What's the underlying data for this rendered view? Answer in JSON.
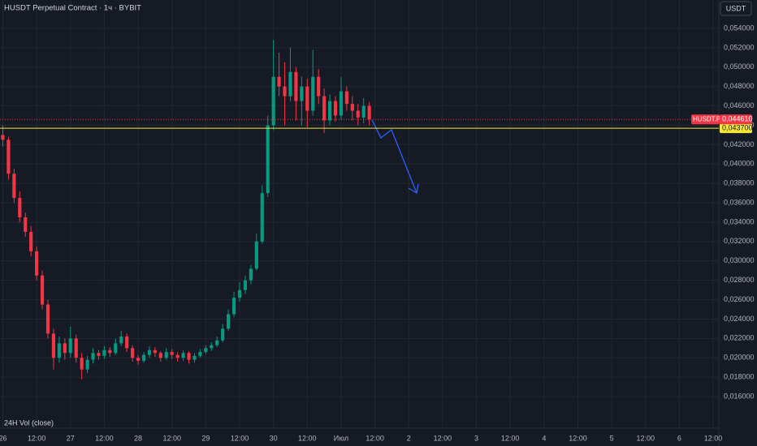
{
  "chart_data": {
    "type": "candlestick",
    "title": "HUSDT Perpetual Contract · 1ч · BYBIT",
    "currency": "USDT",
    "indicator": "24H Vol (close)",
    "up_color": "#089981",
    "down_color": "#f23645",
    "grid": true,
    "xlim": [
      -1,
      254
    ],
    "xticks": [
      {
        "value": 0,
        "label": "26"
      },
      {
        "value": 12,
        "label": "12:00"
      },
      {
        "value": 24,
        "label": "27"
      },
      {
        "value": 36,
        "label": "12:00"
      },
      {
        "value": 48,
        "label": "28"
      },
      {
        "value": 60,
        "label": "12:00"
      },
      {
        "value": 72,
        "label": "29"
      },
      {
        "value": 84,
        "label": "12:00"
      },
      {
        "value": 96,
        "label": "30"
      },
      {
        "value": 108,
        "label": "12:00"
      },
      {
        "value": 120,
        "label": "Июл"
      },
      {
        "value": 132,
        "label": "12:00"
      },
      {
        "value": 144,
        "label": "2"
      },
      {
        "value": 156,
        "label": "12:00"
      },
      {
        "value": 168,
        "label": "3"
      },
      {
        "value": 180,
        "label": "12:00"
      },
      {
        "value": 192,
        "label": "4"
      },
      {
        "value": 204,
        "label": "12:00"
      },
      {
        "value": 216,
        "label": "5"
      },
      {
        "value": 228,
        "label": "12:00"
      },
      {
        "value": 240,
        "label": "6"
      },
      {
        "value": 252,
        "label": "12:00"
      }
    ],
    "ylim": [
      0.01274,
      0.05693
    ],
    "yticks": [
      {
        "value": 0.016,
        "label": "0,016000"
      },
      {
        "value": 0.018,
        "label": "0,018000"
      },
      {
        "value": 0.02,
        "label": "0,020000"
      },
      {
        "value": 0.022,
        "label": "0,022000"
      },
      {
        "value": 0.024,
        "label": "0,024000"
      },
      {
        "value": 0.026,
        "label": "0,026000"
      },
      {
        "value": 0.028,
        "label": "0,028000"
      },
      {
        "value": 0.03,
        "label": "0,030000"
      },
      {
        "value": 0.032,
        "label": "0,032000"
      },
      {
        "value": 0.034,
        "label": "0,034000"
      },
      {
        "value": 0.036,
        "label": "0,036000"
      },
      {
        "value": 0.038,
        "label": "0,038000"
      },
      {
        "value": 0.04,
        "label": "0,040000"
      },
      {
        "value": 0.042,
        "label": "0,042000"
      },
      {
        "value": 0.044,
        "label": "0,044000"
      },
      {
        "value": 0.046,
        "label": "0,046000"
      },
      {
        "value": 0.048,
        "label": "0,048000"
      },
      {
        "value": 0.05,
        "label": "0,050000"
      },
      {
        "value": 0.052,
        "label": "0,052000"
      },
      {
        "value": 0.054,
        "label": "0,054000"
      }
    ],
    "last_price": {
      "name": "HUSDT.P",
      "value": 0.04461,
      "label": "0,044610",
      "color": "#f23645"
    },
    "level": {
      "value": 0.0437,
      "label": "0,043700",
      "color": "#f5e63b"
    },
    "x": [
      0,
      2,
      4,
      6,
      8,
      10,
      12,
      14,
      16,
      18,
      20,
      22,
      24,
      26,
      28,
      30,
      32,
      34,
      36,
      38,
      40,
      42,
      44,
      46,
      48,
      50,
      52,
      54,
      56,
      58,
      60,
      62,
      64,
      66,
      68,
      70,
      72,
      74,
      76,
      78,
      80,
      82,
      84,
      86,
      88,
      90,
      92,
      94,
      96,
      98,
      100,
      102,
      104,
      106,
      108,
      110,
      112,
      114,
      116,
      118,
      120,
      122,
      124,
      126,
      128,
      130
    ],
    "ohlc": [
      [
        0.043,
        0.044,
        0.0418,
        0.0425
      ],
      [
        0.0425,
        0.0428,
        0.0384,
        0.039
      ],
      [
        0.039,
        0.0395,
        0.036,
        0.0365
      ],
      [
        0.0365,
        0.0372,
        0.034,
        0.0345
      ],
      [
        0.0345,
        0.035,
        0.0325,
        0.033
      ],
      [
        0.033,
        0.0336,
        0.0305,
        0.031
      ],
      [
        0.031,
        0.0315,
        0.028,
        0.0285
      ],
      [
        0.0285,
        0.029,
        0.025,
        0.0255
      ],
      [
        0.0255,
        0.026,
        0.022,
        0.0225
      ],
      [
        0.0225,
        0.023,
        0.0188,
        0.02
      ],
      [
        0.02,
        0.0222,
        0.0195,
        0.0215
      ],
      [
        0.0215,
        0.022,
        0.0198,
        0.0205
      ],
      [
        0.0205,
        0.0232,
        0.02,
        0.022
      ],
      [
        0.022,
        0.0224,
        0.0195,
        0.02
      ],
      [
        0.02,
        0.0205,
        0.0178,
        0.0188
      ],
      [
        0.0188,
        0.0202,
        0.0184,
        0.0198
      ],
      [
        0.0198,
        0.021,
        0.0194,
        0.0205
      ],
      [
        0.0205,
        0.0208,
        0.0198,
        0.0202
      ],
      [
        0.0202,
        0.0212,
        0.0199,
        0.0208
      ],
      [
        0.0208,
        0.0211,
        0.0201,
        0.0205
      ],
      [
        0.0205,
        0.022,
        0.0203,
        0.0215
      ],
      [
        0.0215,
        0.0228,
        0.0212,
        0.0222
      ],
      [
        0.0222,
        0.0225,
        0.0206,
        0.021
      ],
      [
        0.021,
        0.0213,
        0.0196,
        0.02
      ],
      [
        0.02,
        0.0203,
        0.0193,
        0.0197
      ],
      [
        0.0197,
        0.0206,
        0.0195,
        0.0203
      ],
      [
        0.0203,
        0.0212,
        0.02,
        0.0208
      ],
      [
        0.0208,
        0.0211,
        0.0201,
        0.0205
      ],
      [
        0.0205,
        0.0207,
        0.0196,
        0.02
      ],
      [
        0.02,
        0.021,
        0.0198,
        0.0206
      ],
      [
        0.0206,
        0.0209,
        0.0199,
        0.0203
      ],
      [
        0.0203,
        0.0206,
        0.0196,
        0.02
      ],
      [
        0.02,
        0.0208,
        0.0197,
        0.0205
      ],
      [
        0.0205,
        0.0207,
        0.0194,
        0.0198
      ],
      [
        0.0198,
        0.0205,
        0.0195,
        0.0202
      ],
      [
        0.0202,
        0.0209,
        0.02,
        0.0206
      ],
      [
        0.0206,
        0.0213,
        0.0204,
        0.021
      ],
      [
        0.021,
        0.0216,
        0.0207,
        0.0213
      ],
      [
        0.0213,
        0.0222,
        0.0211,
        0.0218
      ],
      [
        0.0218,
        0.0235,
        0.0216,
        0.023
      ],
      [
        0.023,
        0.025,
        0.0228,
        0.0245
      ],
      [
        0.0245,
        0.0268,
        0.0242,
        0.0262
      ],
      [
        0.0262,
        0.0278,
        0.0258,
        0.027
      ],
      [
        0.027,
        0.0285,
        0.0266,
        0.028
      ],
      [
        0.028,
        0.0296,
        0.0276,
        0.0292
      ],
      [
        0.0292,
        0.0328,
        0.029,
        0.032
      ],
      [
        0.032,
        0.0378,
        0.0318,
        0.037
      ],
      [
        0.037,
        0.045,
        0.0366,
        0.044
      ],
      [
        0.044,
        0.0528,
        0.0435,
        0.049
      ],
      [
        0.049,
        0.0515,
        0.047,
        0.048
      ],
      [
        0.048,
        0.0505,
        0.044,
        0.047
      ],
      [
        0.047,
        0.052,
        0.0465,
        0.0495
      ],
      [
        0.0495,
        0.05,
        0.0445,
        0.0465
      ],
      [
        0.0465,
        0.049,
        0.044,
        0.048
      ],
      [
        0.048,
        0.0488,
        0.0438,
        0.0455
      ],
      [
        0.0455,
        0.0518,
        0.045,
        0.049
      ],
      [
        0.049,
        0.0498,
        0.0462,
        0.047
      ],
      [
        0.047,
        0.0478,
        0.0432,
        0.0445
      ],
      [
        0.0445,
        0.0472,
        0.044,
        0.0465
      ],
      [
        0.0465,
        0.047,
        0.0444,
        0.045
      ],
      [
        0.045,
        0.049,
        0.0446,
        0.0475
      ],
      [
        0.0475,
        0.048,
        0.0455,
        0.0462
      ],
      [
        0.0462,
        0.047,
        0.0445,
        0.0455
      ],
      [
        0.0455,
        0.0462,
        0.044,
        0.0448
      ],
      [
        0.0448,
        0.0468,
        0.0442,
        0.046
      ],
      [
        0.046,
        0.0464,
        0.044,
        0.04461
      ]
    ]
  }
}
